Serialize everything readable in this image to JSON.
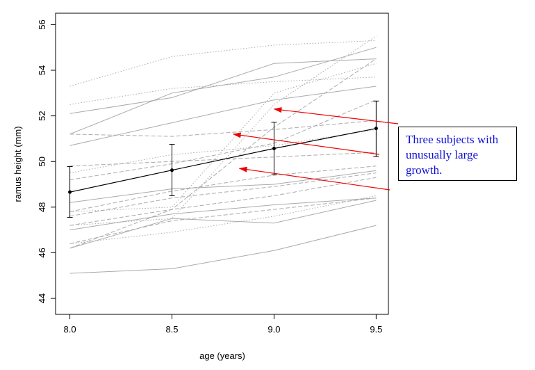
{
  "chart_data": {
    "type": "line",
    "xlabel": "age (years)",
    "ylabel": "ramus height (mm)",
    "xlim": [
      7.93,
      9.56
    ],
    "ylim": [
      43.3,
      56.5
    ],
    "x_ticks": [
      8.0,
      8.5,
      9.0,
      9.5
    ],
    "x_tick_labels": [
      "8.0",
      "8.5",
      "9.0",
      "9.5"
    ],
    "y_ticks": [
      44,
      46,
      48,
      50,
      52,
      54,
      56
    ],
    "y_tick_labels": [
      "44",
      "46",
      "48",
      "50",
      "52",
      "54",
      "56"
    ],
    "x": [
      8.0,
      8.5,
      9.0,
      9.5
    ],
    "subjects": [
      {
        "style": "dotted",
        "values": [
          53.3,
          54.6,
          55.1,
          55.3
        ]
      },
      {
        "style": "dotted",
        "values": [
          52.5,
          53.2,
          53.5,
          53.7
        ]
      },
      {
        "style": "solid",
        "values": [
          52.1,
          52.8,
          54.3,
          54.5
        ]
      },
      {
        "style": "solid",
        "values": [
          51.2,
          53.0,
          53.7,
          55.0
        ]
      },
      {
        "style": "solid",
        "values": [
          50.7,
          51.7,
          52.7,
          53.3
        ]
      },
      {
        "style": "dashed",
        "values": [
          51.2,
          51.1,
          51.4,
          51.8
        ]
      },
      {
        "style": "dashed",
        "values": [
          49.8,
          50.0,
          50.2,
          50.4
        ]
      },
      {
        "style": "dashed",
        "values": [
          49.2,
          49.9,
          50.8,
          52.7
        ]
      },
      {
        "style": "dotted",
        "values": [
          49.5,
          50.3,
          50.7,
          51.4
        ]
      },
      {
        "style": "dotted",
        "values": [
          47.8,
          48.0,
          53.0,
          54.3
        ]
      },
      {
        "style": "dashed",
        "values": [
          46.2,
          47.9,
          51.5,
          54.5
        ]
      },
      {
        "style": "dotted",
        "values": [
          47.2,
          47.5,
          52.5,
          55.5
        ]
      },
      {
        "style": "solid",
        "values": [
          48.2,
          48.8,
          49.0,
          49.6
        ]
      },
      {
        "style": "dashed",
        "values": [
          47.8,
          48.7,
          49.4,
          49.8
        ]
      },
      {
        "style": "dashed",
        "values": [
          47.6,
          48.4,
          48.9,
          49.5
        ]
      },
      {
        "style": "dashed",
        "values": [
          47.2,
          47.9,
          48.5,
          49.3
        ]
      },
      {
        "style": "solid",
        "values": [
          47.0,
          47.7,
          48.1,
          48.4
        ]
      },
      {
        "style": "solid",
        "values": [
          46.2,
          47.5,
          47.3,
          48.3
        ]
      },
      {
        "style": "dashed",
        "values": [
          46.4,
          47.4,
          47.9,
          48.4
        ]
      },
      {
        "style": "dotted",
        "values": [
          46.4,
          46.9,
          47.6,
          48.5
        ]
      },
      {
        "style": "solid",
        "values": [
          45.1,
          45.3,
          46.1,
          47.2
        ]
      }
    ],
    "mean": {
      "values": [
        48.66,
        49.62,
        50.57,
        51.45
      ],
      "lower": [
        47.55,
        48.5,
        49.42,
        50.22
      ],
      "upper": [
        49.78,
        50.75,
        51.72,
        52.65
      ]
    },
    "annotation": {
      "text": "Three subjects with unusually large growth.",
      "lines": [
        "Three subjects with",
        "unusually large",
        "growth."
      ],
      "arrow_targets": [
        {
          "x": 9.0,
          "y": 52.3
        },
        {
          "x": 8.8,
          "y": 51.2
        },
        {
          "x": 8.83,
          "y": 49.7
        }
      ]
    },
    "colors": {
      "subject_lines": "#aaaaaa",
      "mean_line": "#000000",
      "arrows": "#ee0000",
      "annotation_text": "#1010d8"
    }
  }
}
